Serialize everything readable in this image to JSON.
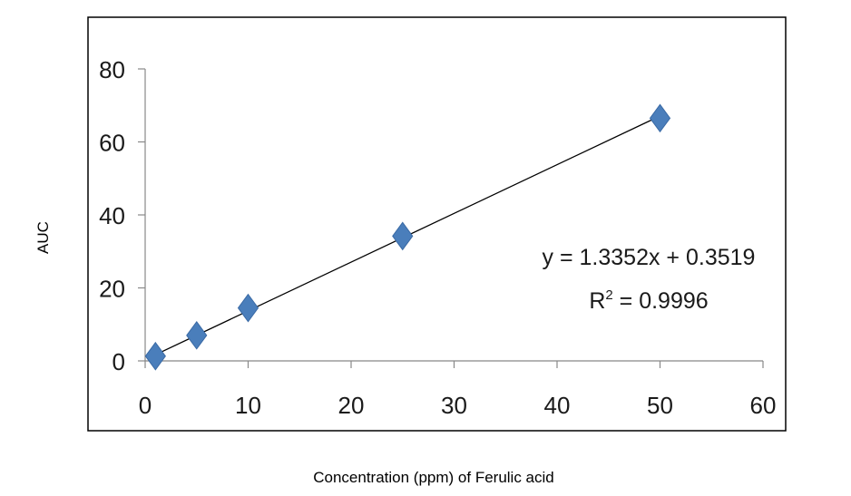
{
  "chart_data": {
    "type": "scatter",
    "title": "",
    "xlabel": "Concentration (ppm) of Ferulic acid",
    "ylabel": "AUC",
    "xlim": [
      0,
      60
    ],
    "ylim": [
      0,
      80
    ],
    "x_ticks": [
      0,
      10,
      20,
      30,
      40,
      50,
      60
    ],
    "y_ticks": [
      0,
      20,
      40,
      60,
      80
    ],
    "grid": false,
    "legend": "none",
    "series": [
      {
        "marker": "diamond",
        "color": "#4a7ebb",
        "points": [
          {
            "x": 1,
            "y": 1.3
          },
          {
            "x": 5,
            "y": 7.0
          },
          {
            "x": 10,
            "y": 14.5
          },
          {
            "x": 25,
            "y": 34.2
          },
          {
            "x": 50,
            "y": 66.5
          }
        ]
      }
    ],
    "trendline": {
      "type": "linear",
      "slope": 1.3352,
      "intercept": 0.3519,
      "x_range": [
        1,
        50
      ],
      "color": "#000000"
    },
    "annotations": {
      "equation": "y = 1.3352x + 0.3519",
      "r_squared_label": "R",
      "r_squared_sup": "2",
      "r_squared_value": " = 0.9996"
    }
  }
}
